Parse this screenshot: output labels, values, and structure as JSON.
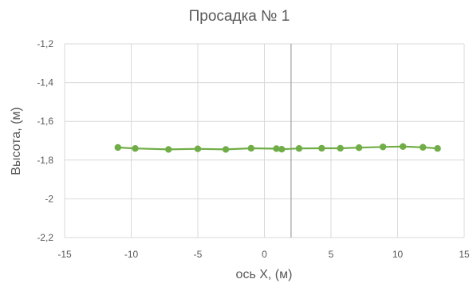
{
  "chart_data": {
    "type": "line",
    "title": "Просадка № 1",
    "xlabel": "ось X, (м)",
    "ylabel": "Высота, (м)",
    "xlim": [
      -15,
      15
    ],
    "ylim": [
      -2.2,
      -1.2
    ],
    "x_ticks": [
      "-15",
      "-10",
      "-5",
      "0",
      "5",
      "10",
      "15"
    ],
    "y_ticks": [
      "-1,2",
      "-1,4",
      "-1,6",
      "-1,8",
      "-2",
      "-2,2"
    ],
    "x_tick_values": [
      -15,
      -10,
      -5,
      0,
      5,
      10,
      15
    ],
    "y_tick_values": [
      -1.2,
      -1.4,
      -1.6,
      -1.8,
      -2.0,
      -2.2
    ],
    "grid": true,
    "reference_line_x": 2,
    "series": [
      {
        "color": "#70AD47",
        "points": [
          {
            "x": -11.0,
            "y": -1.735
          },
          {
            "x": -9.7,
            "y": -1.74
          },
          {
            "x": -7.2,
            "y": -1.745
          },
          {
            "x": -5.0,
            "y": -1.742
          },
          {
            "x": -2.9,
            "y": -1.745
          },
          {
            "x": -1.0,
            "y": -1.739
          },
          {
            "x": 0.9,
            "y": -1.741
          },
          {
            "x": 1.3,
            "y": -1.744
          },
          {
            "x": 2.6,
            "y": -1.74
          },
          {
            "x": 4.3,
            "y": -1.739
          },
          {
            "x": 5.7,
            "y": -1.739
          },
          {
            "x": 7.1,
            "y": -1.736
          },
          {
            "x": 8.9,
            "y": -1.732
          },
          {
            "x": 10.4,
            "y": -1.73
          },
          {
            "x": 11.9,
            "y": -1.734
          },
          {
            "x": 13.0,
            "y": -1.74
          }
        ]
      }
    ]
  }
}
